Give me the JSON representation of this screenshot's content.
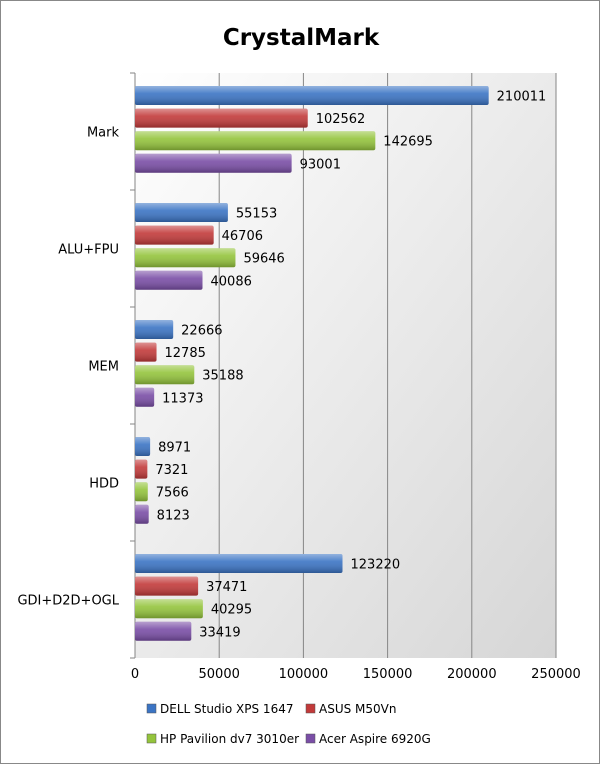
{
  "chart_data": {
    "type": "bar",
    "orientation": "horizontal",
    "title": "CrystalMark",
    "categories": [
      "Mark",
      "ALU+FPU",
      "MEM",
      "HDD",
      "GDI+D2D+OGL"
    ],
    "series": [
      {
        "name": "DELL Studio XPS 1647",
        "color": "#3b74c4",
        "values": [
          210011,
          55153,
          22666,
          8971,
          123220
        ]
      },
      {
        "name": "ASUS M50Vn",
        "color": "#c23a3a",
        "values": [
          102562,
          46706,
          12785,
          7321,
          37471
        ]
      },
      {
        "name": "HP Pavilion dv7 3010er",
        "color": "#94c43c",
        "values": [
          142695,
          59646,
          35188,
          7566,
          40295
        ]
      },
      {
        "name": "Acer Aspire 6920G",
        "color": "#7a4ea6",
        "values": [
          93001,
          40086,
          11373,
          8123,
          33419
        ]
      }
    ],
    "xlim": [
      0,
      250000
    ],
    "xticks": [
      "0",
      "50000",
      "100000",
      "150000",
      "200000",
      "250000"
    ],
    "grid": true,
    "legend_position": "bottom"
  }
}
